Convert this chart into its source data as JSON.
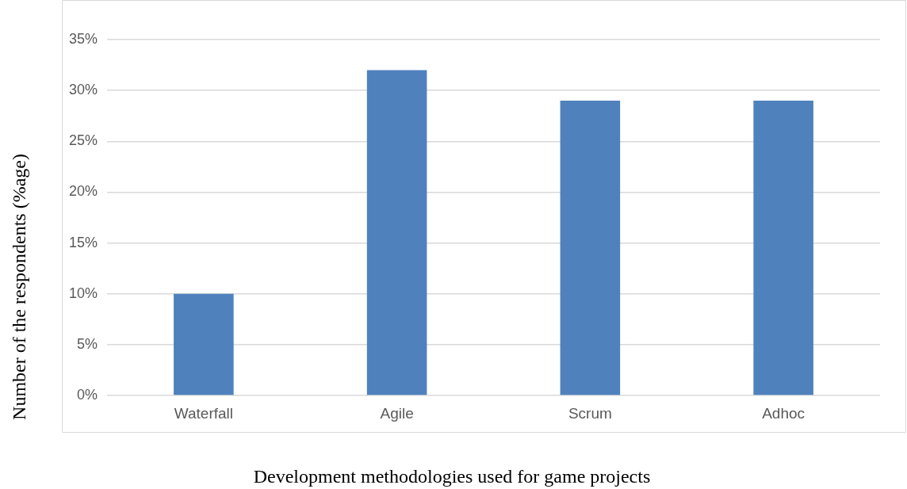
{
  "chart_data": {
    "type": "bar",
    "xlabel": "Development methodologies used for game projects",
    "ylabel": "Number of the respondents (%age)",
    "categories": [
      "Waterfall",
      "Agile",
      "Scrum",
      "Adhoc"
    ],
    "values": [
      10,
      32,
      29,
      29
    ],
    "color": "#4f81bd",
    "ylim": [
      0,
      35
    ],
    "yticks": [
      {
        "value": 0,
        "label": "0%"
      },
      {
        "value": 5,
        "label": "5%"
      },
      {
        "value": 10,
        "label": "10%"
      },
      {
        "value": 15,
        "label": "15%"
      },
      {
        "value": 20,
        "label": "20%"
      },
      {
        "value": 25,
        "label": "25%"
      },
      {
        "value": 30,
        "label": "30%"
      },
      {
        "value": 35,
        "label": "35%"
      }
    ],
    "grid": "y",
    "legend": false
  }
}
